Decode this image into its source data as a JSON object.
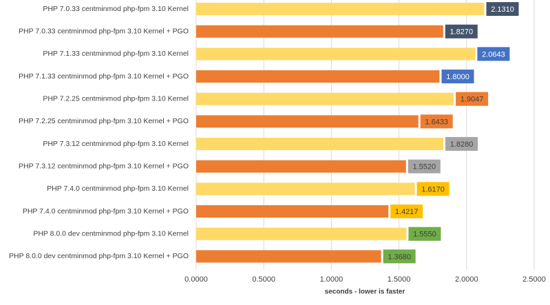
{
  "chart_data": {
    "type": "hbar",
    "x_label": "seconds - lower is faster",
    "categories": [
      "PHP 7.0.33 centminmod php-fpm 3.10 Kernel",
      "PHP 7.0.33 centminmod php-fpm 3.10 Kernel + PGO",
      "PHP 7.1.33 centminmod php-fpm 3.10 Kernel",
      "PHP 7.1.33 centminmod php-fpm 3.10 Kernel + PGO",
      "PHP 7.2.25 centminmod php-fpm 3.10 Kernel",
      "PHP 7.2.25 centminmod php-fpm 3.10 Kernel + PGO",
      "PHP 7.3.12 centminmod php-fpm 3.10 Kernel",
      "PHP 7.3.12 centminmod php-fpm 3.10 Kernel + PGO",
      "PHP 7.4.0 centminmod php-fpm 3.10 Kernel",
      "PHP 7.4.0 centminmod php-fpm 3.10 Kernel + PGO",
      "PHP 8.0.0 dev centminmod php-fpm 3.10 Kernel",
      "PHP 8.0.0 dev centminmod php-fpm 3.10 Kernel + PGO"
    ],
    "values": [
      2.131,
      1.827,
      2.0643,
      1.8,
      1.9047,
      1.6433,
      1.828,
      1.552,
      1.617,
      1.4217,
      1.555,
      1.368
    ],
    "value_labels": [
      "2.1310",
      "1.8270",
      "2.0643",
      "1.8000",
      "1.9047",
      "1.6433",
      "1.8280",
      "1.5520",
      "1.6170",
      "1.4217",
      "1.5550",
      "1.3680"
    ],
    "colors": [
      "#FFD966",
      "#ED7D31",
      "#FFD966",
      "#ED7D31",
      "#FFD966",
      "#ED7D31",
      "#FFD966",
      "#ED7D31",
      "#FFD966",
      "#ED7D31",
      "#FFD966",
      "#ED7D31"
    ],
    "label_colors": [
      "#44546A",
      "#44546A",
      "#4472C4",
      "#4472C4",
      "#ED7D31",
      "#ED7D31",
      "#A5A5A5",
      "#A5A5A5",
      "#FFC000",
      "#FFC000",
      "#70AD47",
      "#70AD47"
    ],
    "label_text_colors": [
      "#ffffff",
      "#ffffff",
      "#ffffff",
      "#ffffff",
      "#404040",
      "#404040",
      "#404040",
      "#404040",
      "#404040",
      "#404040",
      "#404040",
      "#404040"
    ],
    "xlim": [
      0,
      2.5
    ],
    "xticks": [
      {
        "value": 0,
        "label": "0.0000"
      },
      {
        "value": 0.5,
        "label": "0.5000"
      },
      {
        "value": 1,
        "label": "1.0000"
      },
      {
        "value": 1.5,
        "label": "1.5000"
      },
      {
        "value": 2,
        "label": "2.0000"
      },
      {
        "value": 2.5,
        "label": "2.5000"
      }
    ],
    "grid": true
  }
}
